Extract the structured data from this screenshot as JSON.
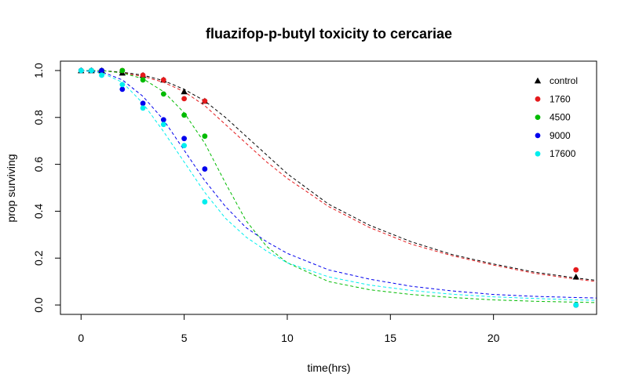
{
  "chart_data": {
    "type": "scatter",
    "title": "fluazifop-p-butyl toxicity to cercariae",
    "xlabel": "time(hrs)",
    "ylabel": "prop surviving",
    "xlim": [
      -1,
      25
    ],
    "ylim": [
      -0.04,
      1.04
    ],
    "x_ticks": [
      0,
      5,
      10,
      15,
      20
    ],
    "y_ticks": [
      0.0,
      0.2,
      0.4,
      0.6,
      0.8,
      1.0
    ],
    "x_tick_labels": [
      "0",
      "5",
      "10",
      "15",
      "20"
    ],
    "y_tick_labels": [
      "0.0",
      "0.2",
      "0.4",
      "0.6",
      "0.8",
      "1.0"
    ],
    "grid": false,
    "legend_position": "top-right",
    "series": [
      {
        "name": "control",
        "color": "#000000",
        "marker": "triangle",
        "points": [
          [
            0,
            1.0
          ],
          [
            0.5,
            1.0
          ],
          [
            1,
            1.0
          ],
          [
            2,
            0.99
          ],
          [
            3,
            0.98
          ],
          [
            4,
            0.96
          ],
          [
            5,
            0.91
          ],
          [
            6,
            0.87
          ],
          [
            24,
            0.12
          ]
        ],
        "curve": [
          [
            0,
            1.0
          ],
          [
            1,
            1.0
          ],
          [
            2,
            0.993
          ],
          [
            3,
            0.98
          ],
          [
            4,
            0.957
          ],
          [
            5,
            0.92
          ],
          [
            6,
            0.87
          ],
          [
            7,
            0.8
          ],
          [
            8,
            0.72
          ],
          [
            9,
            0.64
          ],
          [
            10,
            0.56
          ],
          [
            12,
            0.43
          ],
          [
            14,
            0.34
          ],
          [
            16,
            0.27
          ],
          [
            18,
            0.215
          ],
          [
            20,
            0.175
          ],
          [
            22,
            0.14
          ],
          [
            24,
            0.115
          ],
          [
            25,
            0.105
          ]
        ]
      },
      {
        "name": "1760",
        "color": "#e41a1c",
        "marker": "circle",
        "points": [
          [
            0,
            1.0
          ],
          [
            0.5,
            1.0
          ],
          [
            1,
            1.0
          ],
          [
            2,
            1.0
          ],
          [
            3,
            0.98
          ],
          [
            4,
            0.96
          ],
          [
            5,
            0.88
          ],
          [
            6,
            0.87
          ],
          [
            24,
            0.15
          ]
        ],
        "curve": [
          [
            0,
            1.0
          ],
          [
            1,
            1.0
          ],
          [
            2,
            0.99
          ],
          [
            3,
            0.975
          ],
          [
            4,
            0.95
          ],
          [
            5,
            0.91
          ],
          [
            6,
            0.85
          ],
          [
            7,
            0.77
          ],
          [
            8,
            0.69
          ],
          [
            9,
            0.61
          ],
          [
            10,
            0.54
          ],
          [
            12,
            0.42
          ],
          [
            14,
            0.33
          ],
          [
            16,
            0.26
          ],
          [
            18,
            0.21
          ],
          [
            20,
            0.17
          ],
          [
            22,
            0.135
          ],
          [
            24,
            0.11
          ],
          [
            25,
            0.1
          ]
        ]
      },
      {
        "name": "4500",
        "color": "#00bb00",
        "marker": "circle",
        "points": [
          [
            0,
            1.0
          ],
          [
            0.5,
            1.0
          ],
          [
            1,
            1.0
          ],
          [
            2,
            1.0
          ],
          [
            3,
            0.96
          ],
          [
            4,
            0.9
          ],
          [
            5,
            0.81
          ],
          [
            6,
            0.72
          ],
          [
            24,
            0.0
          ]
        ],
        "curve": [
          [
            0,
            1.0
          ],
          [
            1,
            1.0
          ],
          [
            2,
            0.99
          ],
          [
            3,
            0.965
          ],
          [
            4,
            0.91
          ],
          [
            5,
            0.82
          ],
          [
            6,
            0.69
          ],
          [
            7,
            0.52
          ],
          [
            8,
            0.36
          ],
          [
            9,
            0.25
          ],
          [
            10,
            0.18
          ],
          [
            12,
            0.1
          ],
          [
            14,
            0.065
          ],
          [
            16,
            0.045
          ],
          [
            18,
            0.032
          ],
          [
            20,
            0.022
          ],
          [
            22,
            0.016
          ],
          [
            24,
            0.012
          ],
          [
            25,
            0.01
          ]
        ]
      },
      {
        "name": "9000",
        "color": "#0000ee",
        "marker": "circle",
        "points": [
          [
            0,
            1.0
          ],
          [
            0.5,
            1.0
          ],
          [
            1,
            1.0
          ],
          [
            2,
            0.92
          ],
          [
            3,
            0.86
          ],
          [
            4,
            0.79
          ],
          [
            5,
            0.71
          ],
          [
            6,
            0.58
          ],
          [
            24,
            0.0
          ]
        ],
        "curve": [
          [
            0,
            1.0
          ],
          [
            1,
            0.995
          ],
          [
            2,
            0.96
          ],
          [
            3,
            0.89
          ],
          [
            4,
            0.79
          ],
          [
            5,
            0.66
          ],
          [
            6,
            0.53
          ],
          [
            7,
            0.42
          ],
          [
            8,
            0.33
          ],
          [
            9,
            0.27
          ],
          [
            10,
            0.22
          ],
          [
            12,
            0.15
          ],
          [
            14,
            0.11
          ],
          [
            16,
            0.08
          ],
          [
            18,
            0.06
          ],
          [
            20,
            0.045
          ],
          [
            22,
            0.037
          ],
          [
            24,
            0.032
          ],
          [
            25,
            0.03
          ]
        ]
      },
      {
        "name": "17600",
        "color": "#00eeee",
        "marker": "circle",
        "points": [
          [
            0,
            1.0
          ],
          [
            0.5,
            1.0
          ],
          [
            1,
            0.98
          ],
          [
            2,
            0.94
          ],
          [
            3,
            0.84
          ],
          [
            4,
            0.77
          ],
          [
            5,
            0.68
          ],
          [
            6,
            0.44
          ],
          [
            24,
            0.0
          ]
        ],
        "curve": [
          [
            0,
            1.0
          ],
          [
            1,
            0.99
          ],
          [
            2,
            0.95
          ],
          [
            3,
            0.86
          ],
          [
            4,
            0.74
          ],
          [
            5,
            0.61
          ],
          [
            6,
            0.48
          ],
          [
            7,
            0.37
          ],
          [
            8,
            0.29
          ],
          [
            9,
            0.23
          ],
          [
            10,
            0.18
          ],
          [
            12,
            0.12
          ],
          [
            14,
            0.085
          ],
          [
            16,
            0.062
          ],
          [
            18,
            0.046
          ],
          [
            20,
            0.035
          ],
          [
            22,
            0.028
          ],
          [
            24,
            0.022
          ],
          [
            25,
            0.02
          ]
        ]
      }
    ]
  }
}
